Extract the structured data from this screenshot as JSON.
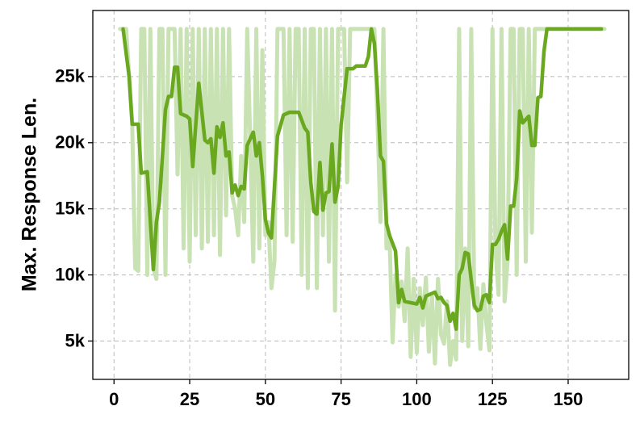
{
  "chart_data": {
    "type": "line",
    "y_label": "Max. Response Len.",
    "xlim": [
      -7,
      170
    ],
    "ylim": [
      2100,
      30000
    ],
    "xticks": [
      0,
      25,
      50,
      75,
      100,
      125,
      150
    ],
    "yticks": [
      {
        "value": 5000,
        "label": "5k"
      },
      {
        "value": 10000,
        "label": "10k"
      },
      {
        "value": 15000,
        "label": "15k"
      },
      {
        "value": 20000,
        "label": "20k"
      },
      {
        "value": 25000,
        "label": "25k"
      }
    ],
    "grid": true,
    "series": [
      {
        "color": "#c9e2b3",
        "width": 5,
        "x": [
          2,
          4,
          5,
          6,
          7,
          8,
          9,
          10,
          11,
          12,
          13,
          14,
          15,
          16,
          17,
          18,
          19,
          20,
          21,
          22,
          23,
          24,
          25,
          26,
          27,
          28,
          29,
          30,
          31,
          32,
          33,
          34,
          35,
          36,
          37,
          38,
          39,
          40,
          41,
          42,
          43,
          44,
          45,
          46,
          47,
          48,
          49,
          50,
          51,
          52,
          53,
          54,
          55,
          56,
          57,
          58,
          59,
          60,
          61,
          62,
          63,
          64,
          65,
          66,
          67,
          68,
          69,
          70,
          71,
          72,
          73,
          74,
          75,
          76,
          77,
          78,
          79,
          80,
          82,
          84,
          85,
          86,
          87,
          88,
          89,
          90,
          91,
          92,
          93,
          94,
          95,
          96,
          97,
          98,
          99,
          100,
          101,
          102,
          103,
          104,
          105,
          106,
          107,
          108,
          109,
          110,
          111,
          112,
          113,
          114,
          115,
          116,
          117,
          118,
          119,
          120,
          121,
          122,
          123,
          124,
          125,
          126,
          127,
          128,
          129,
          130,
          131,
          132,
          133,
          134,
          135,
          136,
          137,
          138,
          139,
          140,
          141,
          145,
          150,
          155,
          162
        ],
        "values": [
          28600,
          28600,
          25000,
          21400,
          10500,
          10300,
          28600,
          28600,
          10000,
          28600,
          10500,
          9700,
          28600,
          28600,
          10000,
          28600,
          28600,
          28600,
          17600,
          28600,
          12000,
          28600,
          11000,
          28600,
          13000,
          28600,
          12000,
          28600,
          12500,
          28600,
          13000,
          28600,
          11500,
          28600,
          14500,
          28600,
          16000,
          15000,
          13000,
          19000,
          14000,
          28600,
          20000,
          11000,
          28600,
          12000,
          27000,
          13000,
          14000,
          9000,
          11000,
          28600,
          28600,
          28600,
          13000,
          28600,
          12500,
          28600,
          28600,
          10000,
          28600,
          9000,
          28600,
          28600,
          9000,
          28600,
          13000,
          28600,
          11000,
          28600,
          7300,
          28600,
          28600,
          28600,
          17000,
          28600,
          28600,
          28600,
          28600,
          28600,
          28600,
          28600,
          22000,
          14000,
          28600,
          12000,
          13000,
          4900,
          10000,
          7600,
          9500,
          6500,
          12000,
          3800,
          9700,
          4100,
          9000,
          6200,
          9800,
          4200,
          8500,
          3300,
          9700,
          5500,
          4800,
          8000,
          3200,
          5000,
          3600,
          28600,
          5000,
          12000,
          4600,
          28600,
          7500,
          9000,
          4400,
          9300,
          6300,
          4300,
          28600,
          12000,
          8500,
          28600,
          8000,
          11000,
          28600,
          28600,
          10000,
          28600,
          28600,
          11000,
          28600,
          13200,
          28600,
          28600,
          28600,
          28600,
          28600,
          28600,
          28600
        ]
      },
      {
        "color": "#6aa820",
        "width": 4.5,
        "x": [
          3,
          5,
          6,
          8,
          9,
          11,
          13,
          14,
          15,
          17,
          18,
          19,
          20,
          21,
          22,
          24,
          25,
          26,
          28,
          30,
          31,
          32,
          33,
          34,
          35,
          36,
          37,
          38,
          39,
          40,
          41,
          42,
          43,
          44,
          46,
          47,
          48,
          49,
          50,
          51,
          52,
          54,
          56,
          58,
          61,
          63,
          64,
          65,
          66,
          67,
          68,
          69,
          70,
          71,
          72,
          73,
          74,
          75,
          77,
          79,
          80,
          83,
          84,
          85,
          86,
          87,
          88,
          89,
          90,
          91,
          93,
          94,
          95,
          96,
          98,
          100,
          101,
          102,
          103,
          105,
          106,
          107,
          108,
          109,
          110,
          111,
          112,
          113,
          114,
          115,
          116,
          117,
          118,
          119,
          120,
          121,
          122,
          123,
          124,
          125,
          126,
          127,
          128,
          129,
          130,
          131,
          132,
          133,
          134,
          135,
          137,
          138,
          139,
          140,
          141,
          142,
          143,
          161
        ],
        "values": [
          28600,
          25000,
          21400,
          21400,
          17700,
          17800,
          10400,
          14000,
          15500,
          22500,
          23500,
          23500,
          25700,
          25700,
          22200,
          22000,
          21800,
          18200,
          24500,
          20200,
          20000,
          20300,
          17700,
          21200,
          20400,
          21500,
          19000,
          19300,
          16200,
          16800,
          16000,
          16700,
          16500,
          19800,
          20800,
          19000,
          20000,
          17500,
          14200,
          13200,
          12800,
          20500,
          22100,
          22300,
          22300,
          21100,
          20800,
          17000,
          14800,
          14600,
          18500,
          14900,
          16200,
          16300,
          19900,
          15500,
          16700,
          21300,
          25600,
          25600,
          25800,
          25800,
          26500,
          28600,
          27500,
          24000,
          19000,
          18600,
          13900,
          13000,
          11800,
          7900,
          8900,
          8000,
          7900,
          7800,
          8300,
          7500,
          8400,
          8600,
          8700,
          8200,
          8300,
          7900,
          7700,
          6500,
          7100,
          5900,
          10000,
          10500,
          11700,
          11600,
          9600,
          7700,
          7300,
          7400,
          8400,
          8500,
          7900,
          12300,
          12300,
          12700,
          13300,
          13800,
          11200,
          15200,
          15200,
          17300,
          22400,
          21500,
          22000,
          19800,
          19800,
          23400,
          23500,
          26900,
          28600,
          28600
        ]
      }
    ]
  }
}
